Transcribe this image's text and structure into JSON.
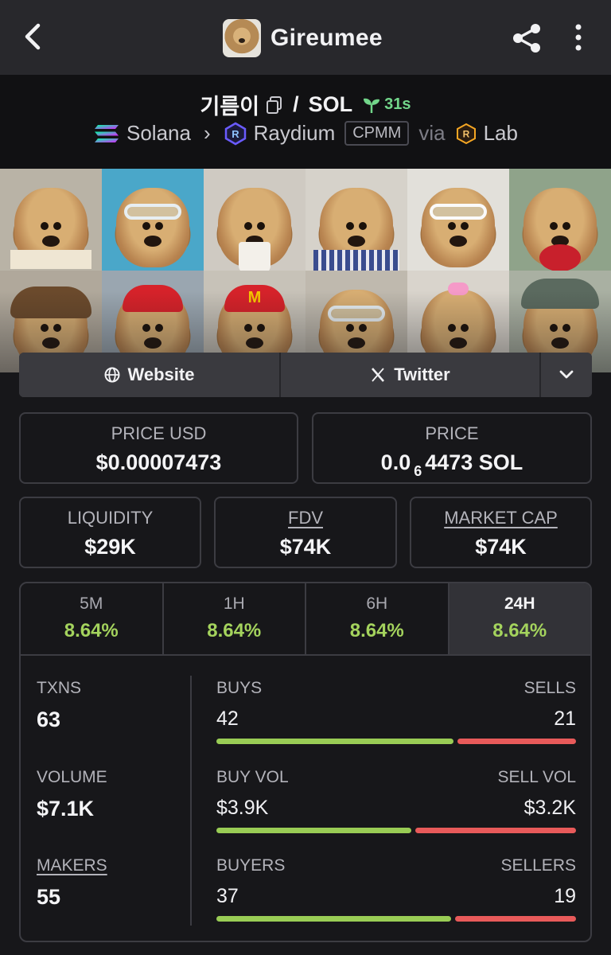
{
  "app": {
    "title": "Gireumee"
  },
  "pair": {
    "base": "기름이",
    "quote": "SOL",
    "separator": "/",
    "age": "31s",
    "chain": "Solana",
    "dex": "Raydium",
    "pool_type": "CPMM",
    "via": "via",
    "launchpad": "Lab"
  },
  "links": {
    "website": "Website",
    "twitter": "Twitter"
  },
  "price": {
    "usd_label": "PRICE USD",
    "usd_value": "$0.00007473",
    "native_label": "PRICE",
    "native_prefix": "0.0",
    "native_zeros": "6",
    "native_digits": "4473 SOL"
  },
  "metrics": {
    "liquidity_label": "LIQUIDITY",
    "liquidity_value": "$29K",
    "fdv_label": "FDV",
    "fdv_value": "$74K",
    "mcap_label": "MARKET CAP",
    "mcap_value": "$74K"
  },
  "timeframes": [
    {
      "label": "5M",
      "change": "8.64%"
    },
    {
      "label": "1H",
      "change": "8.64%"
    },
    {
      "label": "6H",
      "change": "8.64%"
    },
    {
      "label": "24H",
      "change": "8.64%",
      "active": true
    }
  ],
  "stats": {
    "txns_label": "TXNS",
    "txns_value": "63",
    "volume_label": "VOLUME",
    "volume_value": "$7.1K",
    "makers_label": "MAKERS",
    "makers_value": "55",
    "buys_label": "BUYS",
    "buys_value": "42",
    "sells_label": "SELLS",
    "sells_value": "21",
    "buys_fraction": 0.667,
    "buyvol_label": "BUY VOL",
    "buyvol_value": "$3.9K",
    "sellvol_label": "SELL VOL",
    "sellvol_value": "$3.2K",
    "buyvol_fraction": 0.549,
    "buyers_label": "BUYERS",
    "buyers_value": "37",
    "sellers_label": "SELLERS",
    "sellers_value": "19",
    "buyers_fraction": 0.661
  },
  "colors": {
    "positive": "#a4d35d",
    "buy_bar": "#99cc55",
    "sell_bar": "#e85a5a",
    "age_green": "#72d68a"
  },
  "banner_tiles": [
    "dog-with-book",
    "dog-with-goggles-pool",
    "dog-with-cup",
    "dog-in-shirt",
    "dog-with-sunglasses-guitar",
    "dog-with-apple",
    "dog-with-wig",
    "dog-with-red-cap",
    "dog-with-mcdonalds-cap",
    "dog-with-ski-goggles",
    "dog-with-pink-bow",
    "dog-with-bucket-hat-phone"
  ]
}
